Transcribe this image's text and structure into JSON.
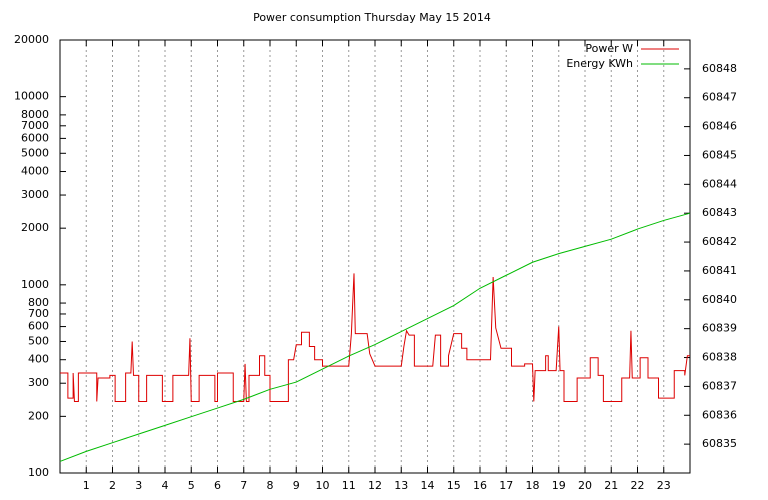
{
  "chart_data": {
    "type": "line",
    "title": "Power consumption Thursday May 15 2014",
    "xlim": [
      0,
      24
    ],
    "xticks": [
      1,
      2,
      3,
      4,
      5,
      6,
      7,
      8,
      9,
      10,
      11,
      12,
      13,
      14,
      15,
      16,
      17,
      18,
      19,
      20,
      21,
      22,
      23
    ],
    "ylim": [
      100,
      20000
    ],
    "ylog": true,
    "yticks": [
      100,
      200,
      300,
      400,
      500,
      600,
      700,
      800,
      1000,
      2000,
      3000,
      4000,
      5000,
      6000,
      7000,
      8000,
      10000,
      20000
    ],
    "y2lim": [
      60834,
      60849
    ],
    "y2ticks": [
      60835,
      60836,
      60837,
      60838,
      60839,
      60840,
      60841,
      60842,
      60843,
      60844,
      60845,
      60846,
      60847,
      60848
    ],
    "grid": "x",
    "legend": "top-right",
    "series": [
      {
        "name": "Power W",
        "color": "#dd0000",
        "step": true,
        "x": [
          0,
          0.3,
          0.3,
          0.5,
          0.5,
          0.55,
          0.7,
          0.7,
          1.4,
          1.4,
          1.45,
          1.9,
          1.9,
          2.1,
          2.1,
          2.5,
          2.5,
          2.7,
          2.75,
          2.8,
          3.0,
          3.0,
          3.3,
          3.3,
          3.9,
          3.9,
          4.3,
          4.3,
          4.9,
          4.95,
          5.0,
          5.3,
          5.3,
          5.9,
          5.9,
          6.0,
          6.0,
          6.6,
          6.6,
          7.0,
          7.05,
          7.1,
          7.2,
          7.2,
          7.6,
          7.6,
          7.8,
          7.8,
          8.0,
          8.0,
          8.7,
          8.7,
          8.9,
          9.0,
          9.2,
          9.2,
          9.5,
          9.5,
          9.7,
          9.7,
          10.0,
          10.0,
          11.0,
          11.1,
          11.2,
          11.25,
          11.7,
          11.8,
          12.0,
          13.0,
          13.1,
          13.2,
          13.3,
          13.5,
          13.5,
          14.2,
          14.3,
          14.5,
          14.5,
          14.8,
          14.8,
          15.0,
          15.3,
          15.3,
          15.5,
          15.5,
          16.4,
          16.5,
          16.6,
          16.8,
          17.2,
          17.2,
          17.7,
          17.7,
          18.0,
          18.05,
          18.1,
          18.5,
          18.5,
          18.6,
          18.6,
          18.9,
          19.0,
          19.05,
          19.2,
          19.2,
          19.7,
          19.7,
          20.2,
          20.2,
          20.5,
          20.5,
          20.7,
          20.7,
          21.4,
          21.4,
          21.7,
          21.75,
          21.8,
          22.1,
          22.1,
          22.4,
          22.4,
          22.8,
          22.8,
          23.4,
          23.4,
          23.8,
          23.8,
          23.9,
          24
        ],
        "values": [
          340,
          340,
          250,
          250,
          340,
          240,
          240,
          340,
          340,
          240,
          320,
          320,
          330,
          330,
          240,
          240,
          340,
          340,
          500,
          330,
          330,
          240,
          240,
          330,
          330,
          240,
          240,
          330,
          330,
          520,
          240,
          240,
          330,
          330,
          240,
          240,
          340,
          340,
          240,
          240,
          380,
          240,
          240,
          330,
          330,
          420,
          420,
          330,
          330,
          240,
          240,
          400,
          400,
          480,
          480,
          560,
          560,
          470,
          470,
          400,
          400,
          370,
          370,
          550,
          1150,
          550,
          550,
          430,
          370,
          370,
          470,
          570,
          540,
          540,
          370,
          370,
          540,
          540,
          370,
          370,
          420,
          550,
          550,
          460,
          460,
          400,
          400,
          1100,
          590,
          460,
          460,
          370,
          370,
          380,
          380,
          240,
          350,
          350,
          420,
          420,
          350,
          350,
          600,
          350,
          350,
          240,
          240,
          320,
          320,
          410,
          410,
          330,
          330,
          240,
          240,
          320,
          320,
          570,
          320,
          320,
          410,
          410,
          320,
          320,
          250,
          250,
          350,
          350,
          330,
          420,
          420
        ]
      },
      {
        "name": "Energy KWh",
        "color": "#00bb00",
        "axis": "y2",
        "x": [
          0,
          1,
          2,
          3,
          4,
          5,
          6,
          7,
          8,
          9,
          10,
          11,
          12,
          13,
          14,
          15,
          16,
          17,
          18,
          19,
          20,
          21,
          22,
          23,
          24
        ],
        "values": [
          60834.4,
          60834.75,
          60835.05,
          60835.35,
          60835.65,
          60835.95,
          60836.25,
          60836.55,
          60836.9,
          60837.15,
          60837.6,
          60838.05,
          60838.45,
          60838.9,
          60839.35,
          60839.8,
          60840.4,
          60840.85,
          60841.3,
          60841.6,
          60841.85,
          60842.1,
          60842.45,
          60842.75,
          60843.0
        ]
      }
    ]
  }
}
